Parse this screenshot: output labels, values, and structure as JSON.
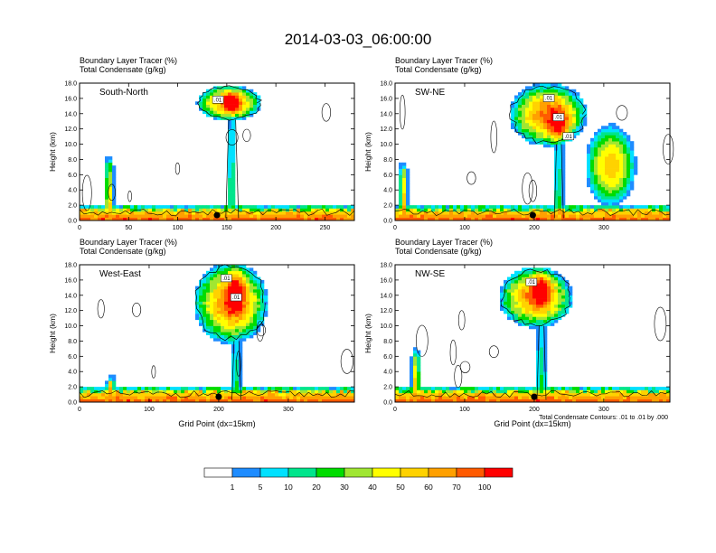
{
  "figure": {
    "title": "2014-03-03_06:00:00",
    "footnote": "Total Condensate Contours: .01 to .01 by .000"
  },
  "colors": {
    "scale": [
      "#ffffff",
      "#1e8cff",
      "#00e1ff",
      "#00e58c",
      "#00dc00",
      "#a0e632",
      "#ffff00",
      "#ffd200",
      "#ffa000",
      "#ff5a00",
      "#ff0000"
    ],
    "contour": "#000000"
  },
  "colorbar": {
    "labels": [
      "1",
      "5",
      "10",
      "20",
      "30",
      "40",
      "50",
      "60",
      "70",
      "100"
    ]
  },
  "chart_data": [
    {
      "type": "heatmap",
      "name": "South-North",
      "title_lines": [
        "Boundary Layer Tracer   (%)",
        "Total Condensate   (g/kg)"
      ],
      "ylabel": "Height (km)",
      "xlabel": "",
      "xlim": [
        0,
        280
      ],
      "ylim": [
        0,
        18
      ],
      "xticks": [
        0,
        50,
        100,
        150,
        200,
        250
      ],
      "yticks": [
        0.0,
        2.0,
        4.0,
        6.0,
        8.0,
        10.0,
        12.0,
        14.0,
        16.0,
        18.0
      ],
      "contour_labels": [
        ".01"
      ],
      "marker_x": 140,
      "anvil": {
        "x_range": [
          120,
          185
        ],
        "z_range": [
          13.2,
          17.6
        ],
        "core_x": 155,
        "core_z": 15.6
      },
      "column": {
        "x": 30,
        "top_z": 7.6
      }
    },
    {
      "type": "heatmap",
      "name": "SW-NE",
      "title_lines": [
        "Boundary Layer Tracer   (%)",
        "Total Condensate   (g/kg)"
      ],
      "ylabel": "Height (km)",
      "xlabel": "",
      "xlim": [
        0,
        395
      ],
      "ylim": [
        0,
        18
      ],
      "xticks": [
        0,
        100,
        200,
        300
      ],
      "yticks": [
        0.0,
        2.0,
        4.0,
        6.0,
        8.0,
        10.0,
        12.0,
        14.0,
        16.0,
        18.0
      ],
      "contour_labels": [
        ".01",
        ".01",
        ".01"
      ],
      "marker_x": 198,
      "anvil": {
        "x_range": [
          165,
          275
        ],
        "z_range": [
          10.0,
          17.8
        ],
        "core_x": 235,
        "core_z": 12.5
      },
      "column": {
        "x": 12,
        "top_z": 6.8
      },
      "second_cell": {
        "x_range": [
          275,
          345
        ],
        "z_range": [
          2.0,
          12.4
        ]
      }
    },
    {
      "type": "heatmap",
      "name": "West-East",
      "title_lines": [
        "Boundary Layer Tracer   (%)",
        "Total Condensate   (g/kg)"
      ],
      "ylabel": "Height (km)",
      "xlabel": "Grid Point (dx=15km)",
      "xlim": [
        0,
        395
      ],
      "ylim": [
        0,
        18
      ],
      "xticks": [
        0,
        100,
        200,
        300
      ],
      "yticks": [
        0.0,
        2.0,
        4.0,
        6.0,
        8.0,
        10.0,
        12.0,
        14.0,
        16.0,
        18.0
      ],
      "contour_labels": [
        ".01",
        ".01"
      ],
      "marker_x": 200,
      "anvil": {
        "x_range": [
          165,
          270
        ],
        "z_range": [
          8.0,
          18.0
        ],
        "core_x": 225,
        "core_z": 14.5
      },
      "column": {
        "x": 45,
        "top_z": 2.8
      }
    },
    {
      "type": "heatmap",
      "name": "NW-SE",
      "title_lines": [
        "Boundary Layer Tracer   (%)",
        "Total Condensate   (g/kg)"
      ],
      "ylabel": "Height (km)",
      "xlabel": "Grid Point (dx=15km)",
      "xlim": [
        0,
        395
      ],
      "ylim": [
        0,
        18
      ],
      "xticks": [
        0,
        100,
        200,
        300
      ],
      "yticks": [
        0.0,
        2.0,
        4.0,
        6.0,
        8.0,
        10.0,
        12.0,
        14.0,
        16.0,
        18.0
      ],
      "contour_labels": [
        ".01"
      ],
      "marker_x": 200,
      "anvil": {
        "x_range": [
          150,
          255
        ],
        "z_range": [
          10.0,
          17.5
        ],
        "core_x": 210,
        "core_z": 15.0
      },
      "column": {
        "x": 30,
        "top_z": 6.2
      }
    }
  ]
}
